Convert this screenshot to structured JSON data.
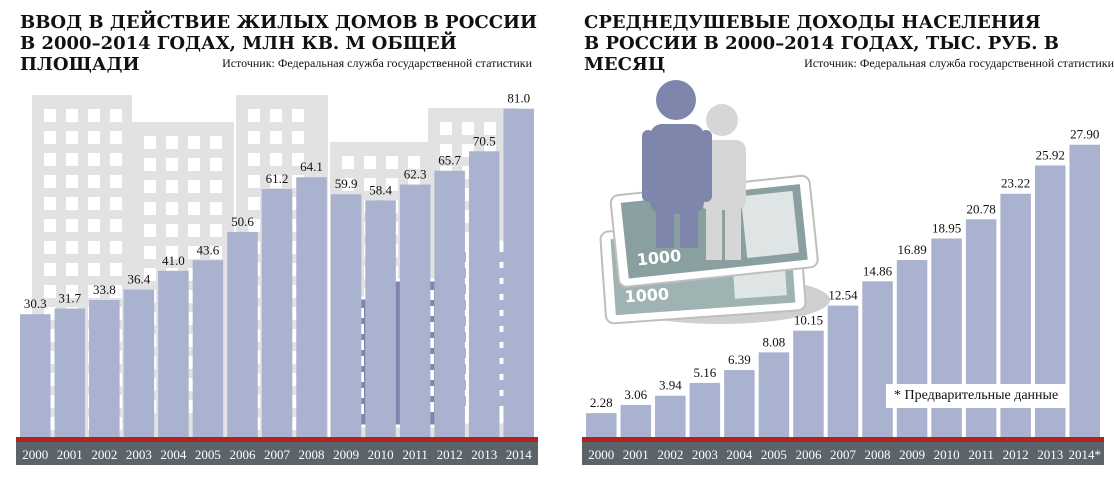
{
  "chart_data": [
    {
      "type": "bar",
      "title": "ВВОД В ДЕЙСТВИЕ ЖИЛЫХ ДОМОВ В РОССИИ\nВ 2000–2014 ГОДАХ, МЛН КВ. М ОБЩЕЙ ПЛОЩАДИ",
      "title_line1": "ВВОД В ДЕЙСТВИЕ ЖИЛЫХ ДОМОВ В РОССИИ",
      "title_line2": "В 2000–2014 ГОДАХ, МЛН КВ. М ОБЩЕЙ ПЛОЩАДИ",
      "source": "Источник: Федеральная служба государственной статистики",
      "categories": [
        "2000",
        "2001",
        "2002",
        "2003",
        "2004",
        "2005",
        "2006",
        "2007",
        "2008",
        "2009",
        "2010",
        "2011",
        "2012",
        "2013",
        "2014"
      ],
      "values": [
        30.3,
        31.7,
        33.8,
        36.4,
        41.0,
        43.6,
        50.6,
        61.2,
        64.1,
        59.9,
        58.4,
        62.3,
        65.7,
        70.5,
        81.0
      ],
      "value_labels": [
        "30.3",
        "31.7",
        "33.8",
        "36.4",
        "41.0",
        "43.6",
        "50.6",
        "61.2",
        "64.1",
        "59.9",
        "58.4",
        "62.3",
        "65.7",
        "70.5",
        "81.0"
      ],
      "ylim": [
        0,
        95
      ],
      "grid": false,
      "colors": {
        "bar": "#a9b3d0",
        "baseline": "#b22222",
        "axis_band": "#5b636b",
        "tick_text": "#ffffff",
        "building_bg": "#e2e2e2",
        "building_fg": "#7e87ab"
      }
    },
    {
      "type": "bar",
      "title": "СРЕДНЕДУШЕВЫЕ ДОХОДЫ НАСЕЛЕНИЯ\nВ РОССИИ В 2000–2014 ГОДАХ, ТЫС. РУБ. В МЕСЯЦ",
      "title_line1": "СРЕДНЕДУШЕВЫЕ ДОХОДЫ НАСЕЛЕНИЯ",
      "title_line2": "В РОССИИ В 2000–2014 ГОДАХ, ТЫС. РУБ. В МЕСЯЦ",
      "source": "Источник: Федеральная служба государственной статистики",
      "categories": [
        "2000",
        "2001",
        "2002",
        "2003",
        "2004",
        "2005",
        "2006",
        "2007",
        "2008",
        "2009",
        "2010",
        "2011",
        "2012",
        "2013",
        "2014*"
      ],
      "values": [
        2.28,
        3.06,
        3.94,
        5.16,
        6.39,
        8.08,
        10.15,
        12.54,
        14.86,
        16.89,
        18.95,
        20.78,
        23.22,
        25.92,
        27.9
      ],
      "value_labels": [
        "2.28",
        "3.06",
        "3.94",
        "5.16",
        "6.39",
        "8.08",
        "10.15",
        "12.54",
        "14.86",
        "16.89",
        "18.95",
        "20.78",
        "23.22",
        "25.92",
        "27.90"
      ],
      "ylim": [
        0,
        31.5
      ],
      "grid": false,
      "footnote": "* Предварительные данные",
      "banknote_text": "1000",
      "colors": {
        "bar": "#a9b3d0",
        "baseline": "#b22222",
        "axis_band": "#5b636b",
        "tick_text": "#ffffff",
        "person_fg": "#7e87ab",
        "person_bg": "#d6d6d6",
        "note_green": "#8aa0a0"
      }
    }
  ]
}
